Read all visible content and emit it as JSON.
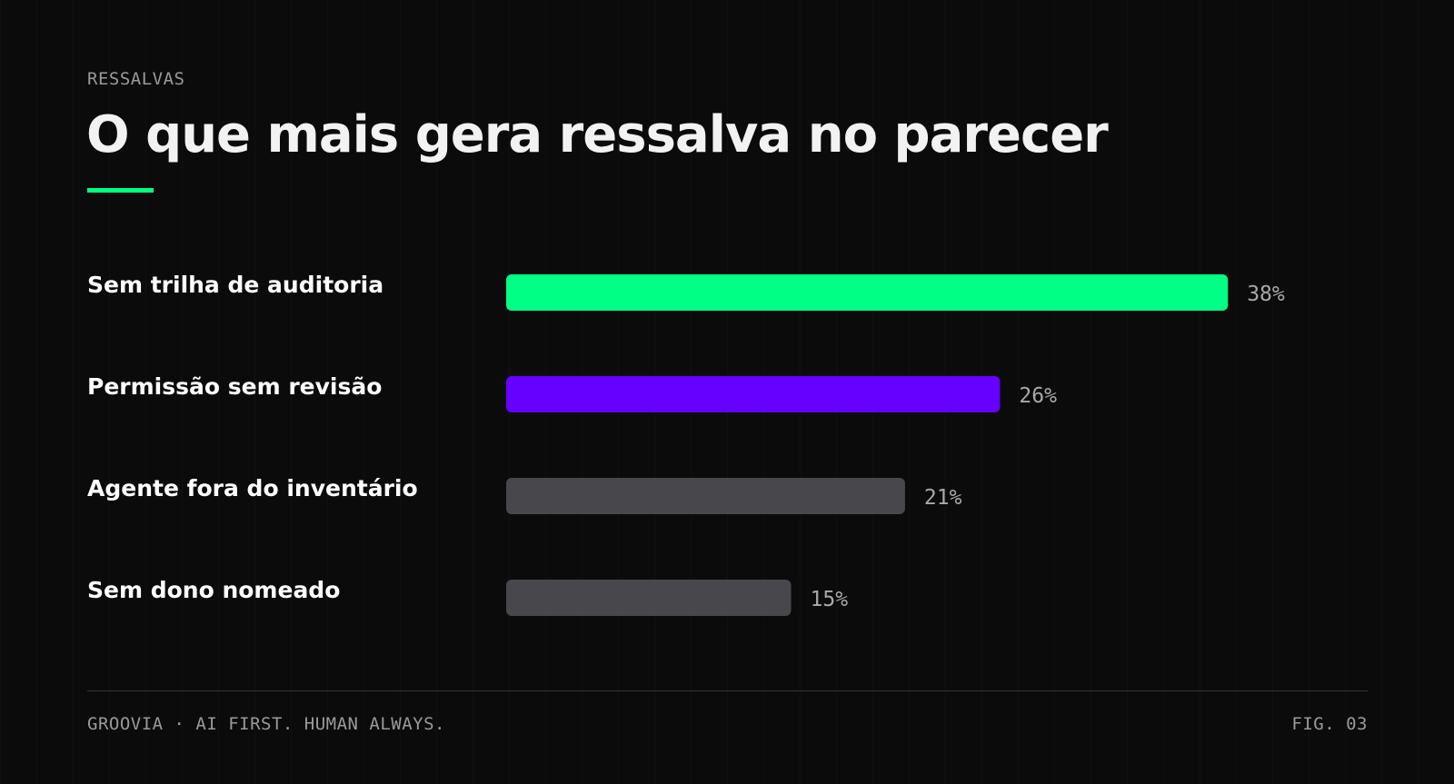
{
  "header": {
    "eyebrow": "RESSALVAS",
    "title": "O que mais gera ressalva no parecer",
    "accent_color": "#00ff85"
  },
  "chart_data": {
    "type": "bar",
    "orientation": "horizontal",
    "title": "O que mais gera ressalva no parecer",
    "categories": [
      "Sem trilha de auditoria",
      "Permissão sem revisão",
      "Agente fora do inventário",
      "Sem dono nomeado"
    ],
    "values": [
      38,
      26,
      21,
      15
    ],
    "value_labels": [
      "38%",
      "26%",
      "21%",
      "15%"
    ],
    "colors": [
      "#00ff85",
      "#6600ff",
      "#47474c",
      "#47474c"
    ],
    "unit": "%",
    "grid": false,
    "legend": "none"
  },
  "footer": {
    "left": "GROOVIA · AI FIRST. HUMAN ALWAYS.",
    "right": "FIG. 03"
  }
}
